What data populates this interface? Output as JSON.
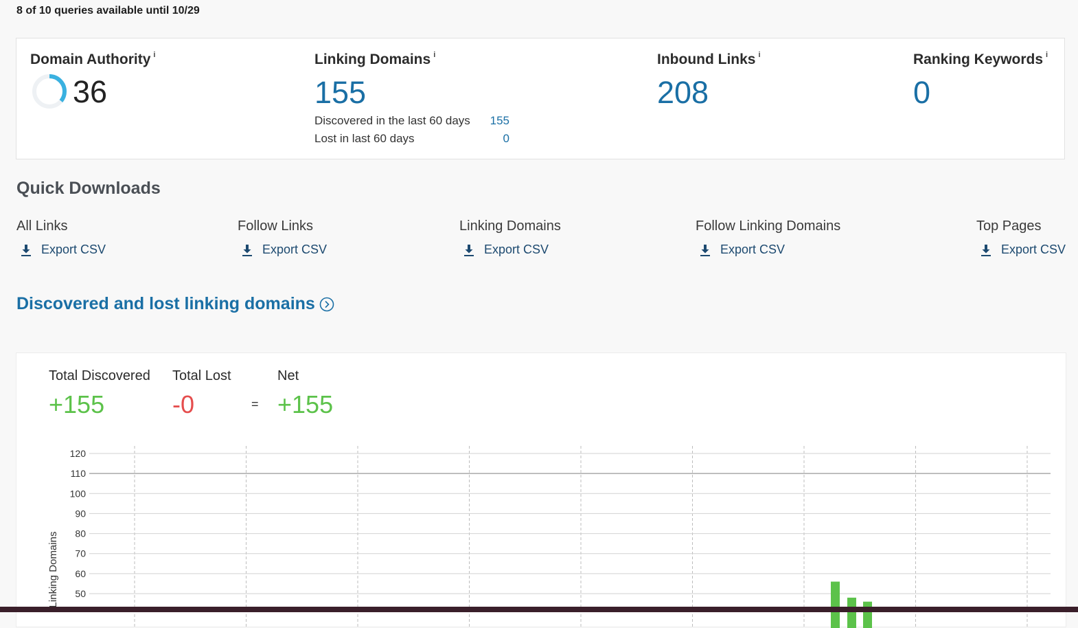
{
  "quota": {
    "text": "8 of 10 queries available until 10/29"
  },
  "metrics": {
    "domain_authority": {
      "label": "Domain Authority",
      "info": "i",
      "value": "36",
      "ring_fraction": 0.36
    },
    "linking_domains": {
      "label": "Linking Domains",
      "info": "i",
      "value": "155",
      "discovered_label": "Discovered in the last 60 days",
      "discovered_value": "155",
      "lost_label": "Lost in last 60 days",
      "lost_value": "0"
    },
    "inbound_links": {
      "label": "Inbound Links",
      "info": "i",
      "value": "208"
    },
    "ranking_keywords": {
      "label": "Ranking Keywords",
      "info": "i",
      "value": "0"
    }
  },
  "quick_downloads": {
    "title": "Quick Downloads",
    "export_label": "Export CSV",
    "items": [
      {
        "label": "All Links"
      },
      {
        "label": "Follow Links"
      },
      {
        "label": "Linking Domains"
      },
      {
        "label": "Follow Linking Domains"
      },
      {
        "label": "Top Pages"
      }
    ]
  },
  "discovered_lost": {
    "title": "Discovered and lost linking domains",
    "icon": "chevron-right-circle-icon",
    "total_discovered_label": "Total Discovered",
    "total_discovered_value": "+155",
    "total_lost_label": "Total Lost",
    "total_lost_value": "-0",
    "equals": "=",
    "net_label": "Net",
    "net_value": "+155"
  },
  "colors": {
    "accent_blue": "#1a6fa5",
    "discovered_green": "#5cc24a",
    "lost_red": "#e54d4d"
  },
  "chart_data": {
    "type": "bar",
    "ylabel": "Linking Domains",
    "yticks": [
      50,
      60,
      70,
      80,
      90,
      100,
      110,
      120
    ],
    "ylim": [
      42,
      120
    ],
    "grid": true,
    "x_gridline_count": 9,
    "series": [
      {
        "values": [
          56,
          48,
          46
        ]
      }
    ]
  }
}
